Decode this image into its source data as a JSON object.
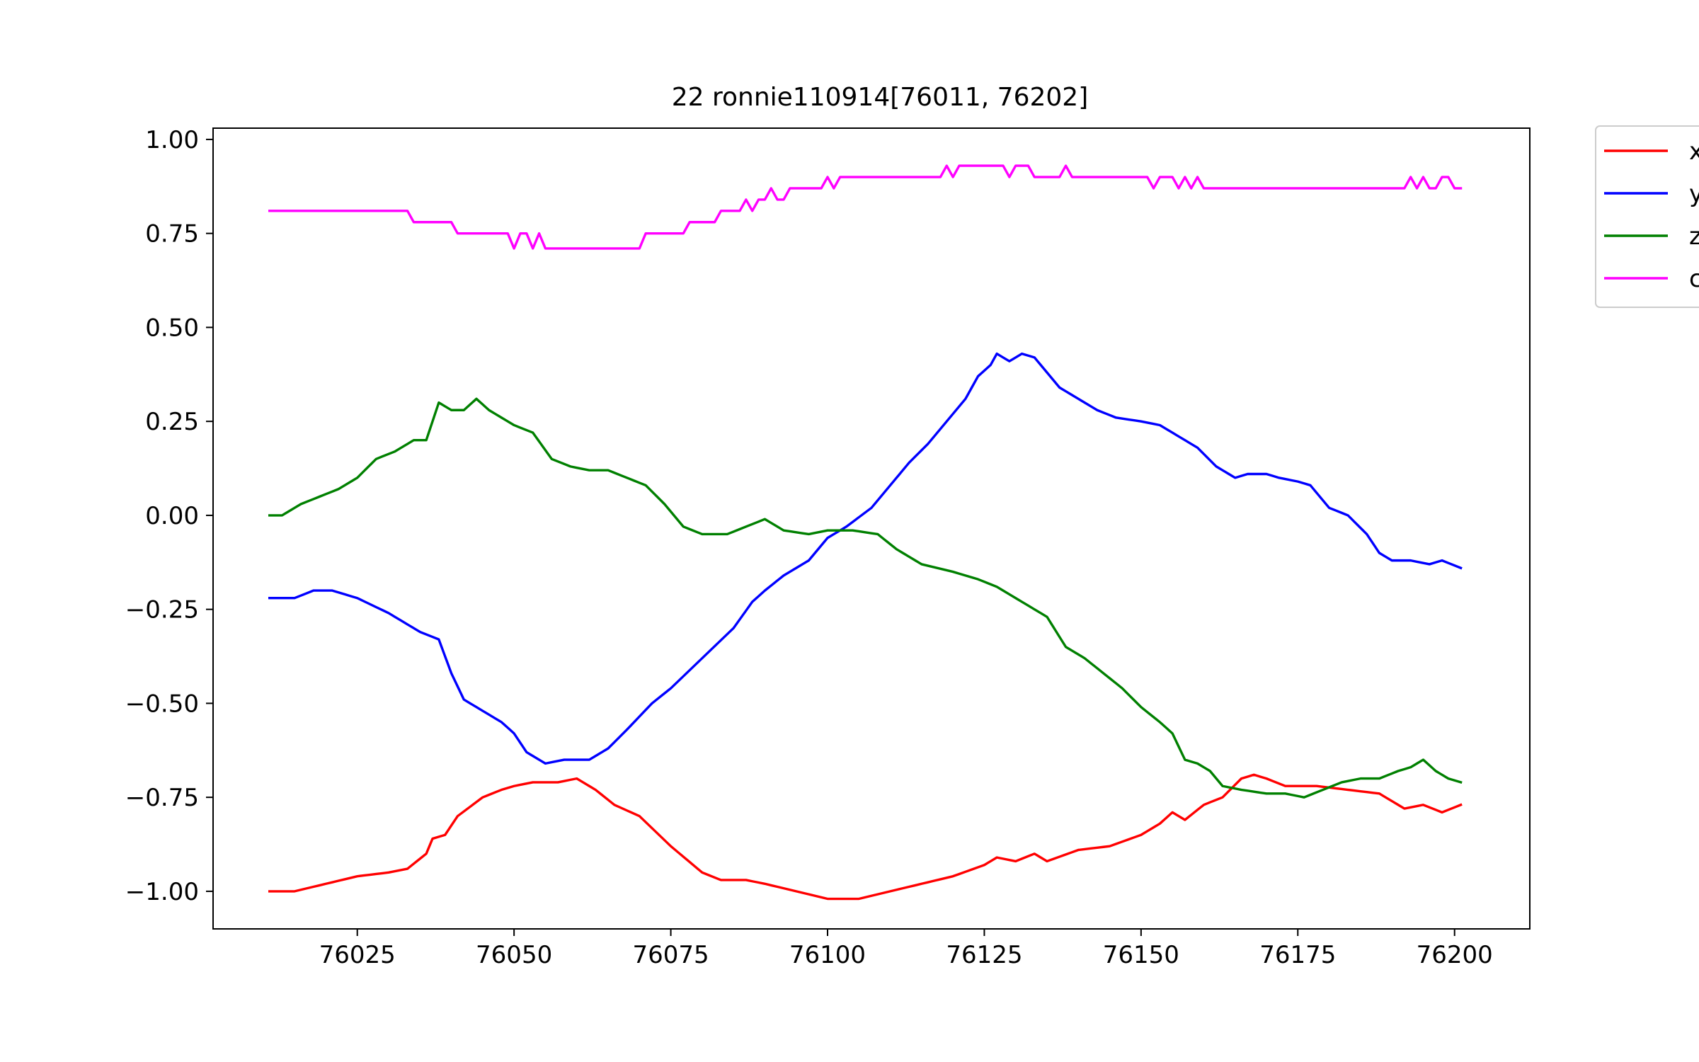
{
  "chart_data": {
    "type": "line",
    "title": "22 ronnie110914[76011, 76202]",
    "xlabel": "",
    "ylabel": "",
    "xlim": [
      76002,
      76212
    ],
    "ylim": [
      -1.1,
      1.03
    ],
    "x_ticks": [
      76025,
      76050,
      76075,
      76100,
      76125,
      76150,
      76175,
      76200
    ],
    "x_tick_labels": [
      "76025",
      "76050",
      "76075",
      "76100",
      "76125",
      "76150",
      "76175",
      "76200"
    ],
    "y_ticks": [
      1.0,
      0.75,
      0.5,
      0.25,
      0.0,
      -0.25,
      -0.5,
      -0.75,
      -1.0
    ],
    "y_tick_labels": [
      "1.00",
      "0.75",
      "0.50",
      "0.25",
      "0.00",
      "−0.25",
      "−0.50",
      "−0.75",
      "−1.00"
    ],
    "grid": false,
    "legend_position": "outside-top-right",
    "x_start": 76011,
    "x_end": 76201,
    "series": [
      {
        "name": "x",
        "color": "#ff0000",
        "points": [
          [
            76011,
            -1.0
          ],
          [
            76015,
            -1.0
          ],
          [
            76020,
            -0.98
          ],
          [
            76025,
            -0.96
          ],
          [
            76030,
            -0.95
          ],
          [
            76033,
            -0.94
          ],
          [
            76036,
            -0.9
          ],
          [
            76037,
            -0.86
          ],
          [
            76039,
            -0.85
          ],
          [
            76041,
            -0.8
          ],
          [
            76045,
            -0.75
          ],
          [
            76048,
            -0.73
          ],
          [
            76050,
            -0.72
          ],
          [
            76053,
            -0.71
          ],
          [
            76057,
            -0.71
          ],
          [
            76060,
            -0.7
          ],
          [
            76063,
            -0.73
          ],
          [
            76066,
            -0.77
          ],
          [
            76070,
            -0.8
          ],
          [
            76075,
            -0.88
          ],
          [
            76080,
            -0.95
          ],
          [
            76083,
            -0.97
          ],
          [
            76087,
            -0.97
          ],
          [
            76090,
            -0.98
          ],
          [
            76095,
            -1.0
          ],
          [
            76100,
            -1.02
          ],
          [
            76105,
            -1.02
          ],
          [
            76110,
            -1.0
          ],
          [
            76115,
            -0.98
          ],
          [
            76120,
            -0.96
          ],
          [
            76125,
            -0.93
          ],
          [
            76127,
            -0.91
          ],
          [
            76130,
            -0.92
          ],
          [
            76133,
            -0.9
          ],
          [
            76135,
            -0.92
          ],
          [
            76140,
            -0.89
          ],
          [
            76145,
            -0.88
          ],
          [
            76150,
            -0.85
          ],
          [
            76153,
            -0.82
          ],
          [
            76155,
            -0.79
          ],
          [
            76157,
            -0.81
          ],
          [
            76160,
            -0.77
          ],
          [
            76163,
            -0.75
          ],
          [
            76166,
            -0.7
          ],
          [
            76168,
            -0.69
          ],
          [
            76170,
            -0.7
          ],
          [
            76173,
            -0.72
          ],
          [
            76178,
            -0.72
          ],
          [
            76183,
            -0.73
          ],
          [
            76188,
            -0.74
          ],
          [
            76190,
            -0.76
          ],
          [
            76192,
            -0.78
          ],
          [
            76195,
            -0.77
          ],
          [
            76198,
            -0.79
          ],
          [
            76201,
            -0.77
          ]
        ]
      },
      {
        "name": "y",
        "color": "#0000ff",
        "points": [
          [
            76011,
            -0.22
          ],
          [
            76015,
            -0.22
          ],
          [
            76018,
            -0.2
          ],
          [
            76021,
            -0.2
          ],
          [
            76025,
            -0.22
          ],
          [
            76030,
            -0.26
          ],
          [
            76033,
            -0.29
          ],
          [
            76035,
            -0.31
          ],
          [
            76038,
            -0.33
          ],
          [
            76040,
            -0.42
          ],
          [
            76042,
            -0.49
          ],
          [
            76045,
            -0.52
          ],
          [
            76048,
            -0.55
          ],
          [
            76050,
            -0.58
          ],
          [
            76052,
            -0.63
          ],
          [
            76055,
            -0.66
          ],
          [
            76058,
            -0.65
          ],
          [
            76062,
            -0.65
          ],
          [
            76065,
            -0.62
          ],
          [
            76068,
            -0.57
          ],
          [
            76072,
            -0.5
          ],
          [
            76075,
            -0.46
          ],
          [
            76080,
            -0.38
          ],
          [
            76085,
            -0.3
          ],
          [
            76088,
            -0.23
          ],
          [
            76090,
            -0.2
          ],
          [
            76093,
            -0.16
          ],
          [
            76097,
            -0.12
          ],
          [
            76100,
            -0.06
          ],
          [
            76103,
            -0.03
          ],
          [
            76107,
            0.02
          ],
          [
            76110,
            0.08
          ],
          [
            76113,
            0.14
          ],
          [
            76116,
            0.19
          ],
          [
            76119,
            0.25
          ],
          [
            76122,
            0.31
          ],
          [
            76124,
            0.37
          ],
          [
            76126,
            0.4
          ],
          [
            76127,
            0.43
          ],
          [
            76129,
            0.41
          ],
          [
            76131,
            0.43
          ],
          [
            76133,
            0.42
          ],
          [
            76135,
            0.38
          ],
          [
            76137,
            0.34
          ],
          [
            76140,
            0.31
          ],
          [
            76143,
            0.28
          ],
          [
            76146,
            0.26
          ],
          [
            76150,
            0.25
          ],
          [
            76153,
            0.24
          ],
          [
            76156,
            0.21
          ],
          [
            76159,
            0.18
          ],
          [
            76162,
            0.13
          ],
          [
            76165,
            0.1
          ],
          [
            76167,
            0.11
          ],
          [
            76170,
            0.11
          ],
          [
            76172,
            0.1
          ],
          [
            76175,
            0.09
          ],
          [
            76177,
            0.08
          ],
          [
            76180,
            0.02
          ],
          [
            76183,
            0.0
          ],
          [
            76186,
            -0.05
          ],
          [
            76188,
            -0.1
          ],
          [
            76190,
            -0.12
          ],
          [
            76193,
            -0.12
          ],
          [
            76196,
            -0.13
          ],
          [
            76198,
            -0.12
          ],
          [
            76201,
            -0.14
          ]
        ]
      },
      {
        "name": "z",
        "color": "#008000",
        "points": [
          [
            76011,
            0.0
          ],
          [
            76013,
            0.0
          ],
          [
            76016,
            0.03
          ],
          [
            76019,
            0.05
          ],
          [
            76022,
            0.07
          ],
          [
            76025,
            0.1
          ],
          [
            76028,
            0.15
          ],
          [
            76031,
            0.17
          ],
          [
            76034,
            0.2
          ],
          [
            76036,
            0.2
          ],
          [
            76038,
            0.3
          ],
          [
            76040,
            0.28
          ],
          [
            76042,
            0.28
          ],
          [
            76044,
            0.31
          ],
          [
            76046,
            0.28
          ],
          [
            76048,
            0.26
          ],
          [
            76050,
            0.24
          ],
          [
            76053,
            0.22
          ],
          [
            76056,
            0.15
          ],
          [
            76059,
            0.13
          ],
          [
            76062,
            0.12
          ],
          [
            76065,
            0.12
          ],
          [
            76068,
            0.1
          ],
          [
            76071,
            0.08
          ],
          [
            76074,
            0.03
          ],
          [
            76077,
            -0.03
          ],
          [
            76080,
            -0.05
          ],
          [
            76084,
            -0.05
          ],
          [
            76087,
            -0.03
          ],
          [
            76090,
            -0.01
          ],
          [
            76093,
            -0.04
          ],
          [
            76097,
            -0.05
          ],
          [
            76100,
            -0.04
          ],
          [
            76104,
            -0.04
          ],
          [
            76108,
            -0.05
          ],
          [
            76111,
            -0.09
          ],
          [
            76115,
            -0.13
          ],
          [
            76120,
            -0.15
          ],
          [
            76124,
            -0.17
          ],
          [
            76127,
            -0.19
          ],
          [
            76130,
            -0.22
          ],
          [
            76133,
            -0.25
          ],
          [
            76135,
            -0.27
          ],
          [
            76138,
            -0.35
          ],
          [
            76141,
            -0.38
          ],
          [
            76144,
            -0.42
          ],
          [
            76147,
            -0.46
          ],
          [
            76150,
            -0.51
          ],
          [
            76153,
            -0.55
          ],
          [
            76155,
            -0.58
          ],
          [
            76157,
            -0.65
          ],
          [
            76159,
            -0.66
          ],
          [
            76161,
            -0.68
          ],
          [
            76163,
            -0.72
          ],
          [
            76166,
            -0.73
          ],
          [
            76170,
            -0.74
          ],
          [
            76173,
            -0.74
          ],
          [
            76176,
            -0.75
          ],
          [
            76179,
            -0.73
          ],
          [
            76182,
            -0.71
          ],
          [
            76185,
            -0.7
          ],
          [
            76188,
            -0.7
          ],
          [
            76191,
            -0.68
          ],
          [
            76193,
            -0.67
          ],
          [
            76195,
            -0.65
          ],
          [
            76197,
            -0.68
          ],
          [
            76199,
            -0.7
          ],
          [
            76201,
            -0.71
          ]
        ]
      },
      {
        "name": "c",
        "color": "#ff00ff",
        "points": [
          [
            76011,
            0.81
          ],
          [
            76033,
            0.81
          ],
          [
            76034,
            0.78
          ],
          [
            76040,
            0.78
          ],
          [
            76041,
            0.75
          ],
          [
            76049,
            0.75
          ],
          [
            76050,
            0.71
          ],
          [
            76051,
            0.75
          ],
          [
            76052,
            0.75
          ],
          [
            76053,
            0.71
          ],
          [
            76054,
            0.75
          ],
          [
            76055,
            0.71
          ],
          [
            76070,
            0.71
          ],
          [
            76071,
            0.75
          ],
          [
            76077,
            0.75
          ],
          [
            76078,
            0.78
          ],
          [
            76082,
            0.78
          ],
          [
            76083,
            0.81
          ],
          [
            76086,
            0.81
          ],
          [
            76087,
            0.84
          ],
          [
            76088,
            0.81
          ],
          [
            76089,
            0.84
          ],
          [
            76090,
            0.84
          ],
          [
            76091,
            0.87
          ],
          [
            76092,
            0.84
          ],
          [
            76093,
            0.84
          ],
          [
            76094,
            0.87
          ],
          [
            76099,
            0.87
          ],
          [
            76100,
            0.9
          ],
          [
            76101,
            0.87
          ],
          [
            76102,
            0.9
          ],
          [
            76118,
            0.9
          ],
          [
            76119,
            0.93
          ],
          [
            76120,
            0.9
          ],
          [
            76121,
            0.93
          ],
          [
            76128,
            0.93
          ],
          [
            76129,
            0.9
          ],
          [
            76130,
            0.93
          ],
          [
            76132,
            0.93
          ],
          [
            76133,
            0.9
          ],
          [
            76137,
            0.9
          ],
          [
            76138,
            0.93
          ],
          [
            76139,
            0.9
          ],
          [
            76151,
            0.9
          ],
          [
            76152,
            0.87
          ],
          [
            76153,
            0.9
          ],
          [
            76155,
            0.9
          ],
          [
            76156,
            0.87
          ],
          [
            76157,
            0.9
          ],
          [
            76158,
            0.87
          ],
          [
            76159,
            0.9
          ],
          [
            76160,
            0.87
          ],
          [
            76192,
            0.87
          ],
          [
            76193,
            0.9
          ],
          [
            76194,
            0.87
          ],
          [
            76195,
            0.9
          ],
          [
            76196,
            0.87
          ],
          [
            76197,
            0.87
          ],
          [
            76198,
            0.9
          ],
          [
            76199,
            0.9
          ],
          [
            76200,
            0.87
          ],
          [
            76201,
            0.87
          ]
        ]
      }
    ]
  }
}
